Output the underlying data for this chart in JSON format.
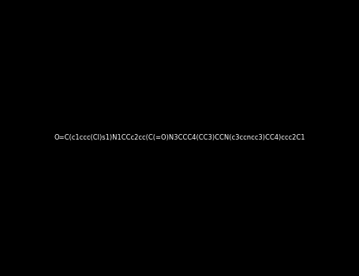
{
  "smiles": "O=C(c1ccc(Cl)s1)N1CCc2cc(C(=O)N3CCC4(CC3)CCN(c3ccncc3)CC4)ccc2C1",
  "bg_color": "#000000",
  "atom_colors": {
    "N": "#00008B",
    "O": "#FF0000",
    "S": "#808000",
    "Cl": "#00CC00",
    "C": "#FFFFFF"
  },
  "bond_color": "#FFFFFF",
  "figsize": [
    4.55,
    3.5
  ],
  "dpi": 100,
  "title": ""
}
